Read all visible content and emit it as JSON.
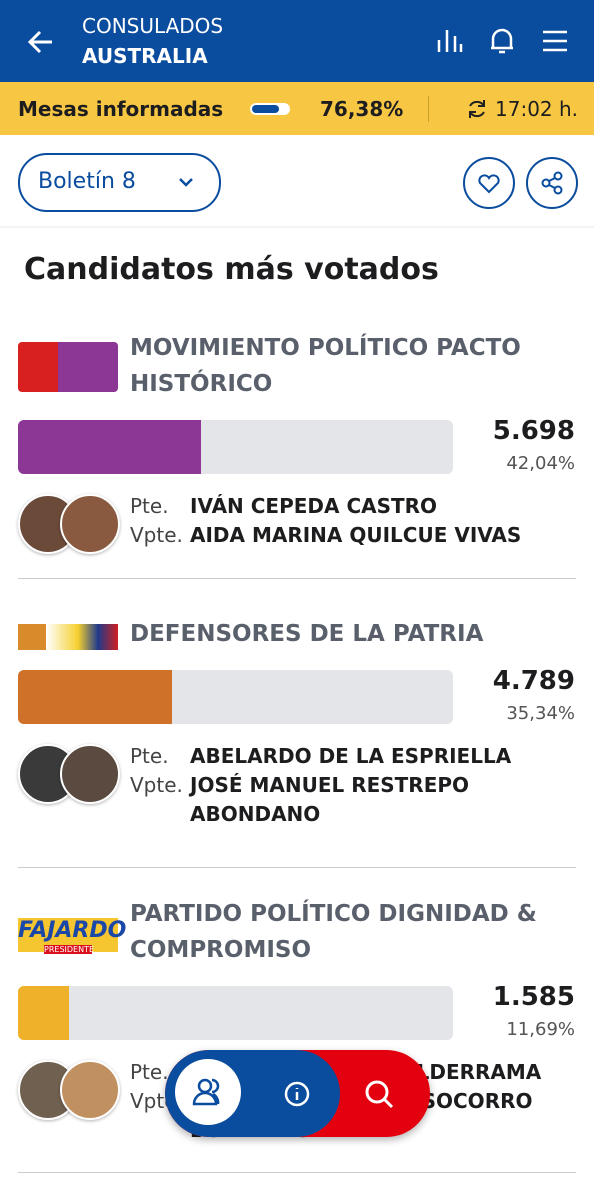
{
  "header": {
    "title": "CONSULADOS",
    "subtitle": "AUSTRALIA"
  },
  "status": {
    "label": "Mesas informadas",
    "progress": 76.38,
    "progress_label": "76,38%",
    "time": "17:02 h."
  },
  "bulletin": "Boletín 8",
  "section_title": "Candidatos más votados",
  "parties": [
    {
      "name": "MOVIMIENTO POLÍTICO PACTO HISTÓRICO",
      "votes": "5.698",
      "share": 42.04,
      "share_label": "42,04%",
      "color": "#8c3696",
      "candidates": [
        {
          "role": "Pte.",
          "name": "IVÁN CEPEDA CASTRO"
        },
        {
          "role": "Vpte.",
          "name": "AIDA MARINA QUILCUE VIVAS"
        }
      ]
    },
    {
      "name": "DEFENSORES DE LA PATRIA",
      "votes": "4.789",
      "share": 35.34,
      "share_label": "35,34%",
      "color": "#cf7129",
      "candidates": [
        {
          "role": "Pte.",
          "name": "ABELARDO DE LA ESPRIELLA"
        },
        {
          "role": "Vpte.",
          "name": "JOSÉ MANUEL RESTREPO ABONDANO"
        }
      ]
    },
    {
      "name": "PARTIDO POLÍTICO DIGNIDAD & COMPROMISO",
      "votes": "1.585",
      "share": 11.69,
      "share_label": "11,69%",
      "color": "#f0b12a",
      "logo": "FAJARDO",
      "logo_sub": "PRESIDENTE",
      "candidates": [
        {
          "role": "Pte.",
          "name": "SERGIO FAJARDO VALDERRAMA"
        },
        {
          "role": "Vpte.",
          "name": "EDNA CRISTINA DEL SOCORRO BONILLA OLIDA"
        }
      ]
    }
  ]
}
